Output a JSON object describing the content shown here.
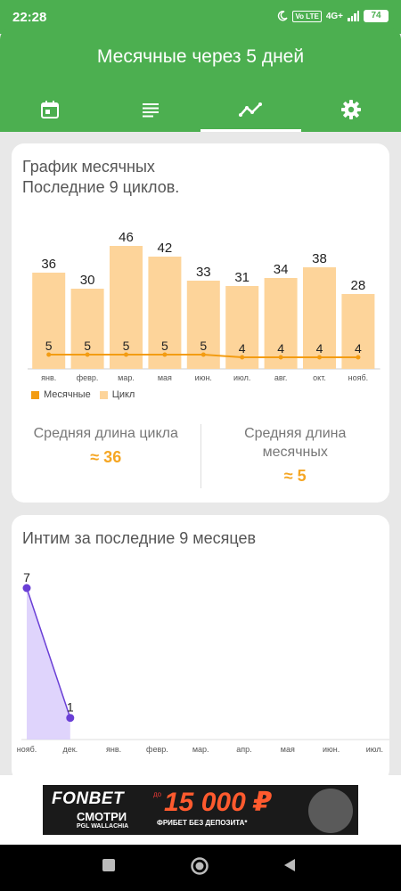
{
  "status_bar": {
    "time": "22:28",
    "network": "4G+",
    "volte": "Vo LTE",
    "battery": "74"
  },
  "app_bar": {
    "title": "Месячные через 5 дней"
  },
  "tabs": [
    {
      "icon": "calendar-icon",
      "active": false
    },
    {
      "icon": "notes-icon",
      "active": false
    },
    {
      "icon": "trend-chart-icon",
      "active": true
    },
    {
      "icon": "gear-icon",
      "active": false
    }
  ],
  "cycle_card": {
    "title_line1": "График месячных",
    "title_line2": "Последние 9 циклов.",
    "legend_period": "Месячные",
    "legend_cycle": "Цикл",
    "avg_cycle_label": "Средняя длина цикла",
    "avg_cycle_value": "≈ 36",
    "avg_period_label": "Средняя длина месячных",
    "avg_period_value": "≈ 5"
  },
  "intimacy_card": {
    "title": "Интим за последние 9 месяцев"
  },
  "ad": {
    "brand": "FONBET",
    "watch": "СМОТРИ",
    "event": "PGL WALLACHIA",
    "prefix": "до",
    "amount": "15 000 ₽",
    "offer": "ФРИБЕТ БЕЗ ДЕПОЗИТА*"
  },
  "colors": {
    "primary": "#4caf50",
    "bar": "#fdd49a",
    "line": "#f39c12",
    "accent": "#f5a623",
    "purple": "#6a3fd6",
    "purple_fill": "#d9ccfb"
  },
  "chart_data": [
    {
      "type": "bar",
      "title": "График месячных",
      "subtitle": "Последние 9 циклов.",
      "categories": [
        "янв.",
        "февр.",
        "мар.",
        "мая",
        "июн.",
        "июл.",
        "авг.",
        "окт.",
        "нояб."
      ],
      "series": [
        {
          "name": "Цикл",
          "type": "bar",
          "values": [
            36,
            30,
            46,
            42,
            33,
            31,
            34,
            38,
            28
          ]
        },
        {
          "name": "Месячные",
          "type": "line",
          "values": [
            5,
            5,
            5,
            5,
            5,
            4,
            4,
            4,
            4
          ]
        }
      ],
      "ylim": [
        0,
        50
      ],
      "legend": "bottom-left",
      "grid": false
    },
    {
      "type": "area",
      "title": "Интим за последние 9 месяцев",
      "categories": [
        "нояб.",
        "дек.",
        "янв.",
        "февр.",
        "мар.",
        "апр.",
        "мая",
        "июн.",
        "июл."
      ],
      "values": [
        7,
        1,
        null,
        null,
        null,
        null,
        null,
        null,
        null
      ],
      "ylim": [
        0,
        7
      ],
      "grid": false
    }
  ]
}
